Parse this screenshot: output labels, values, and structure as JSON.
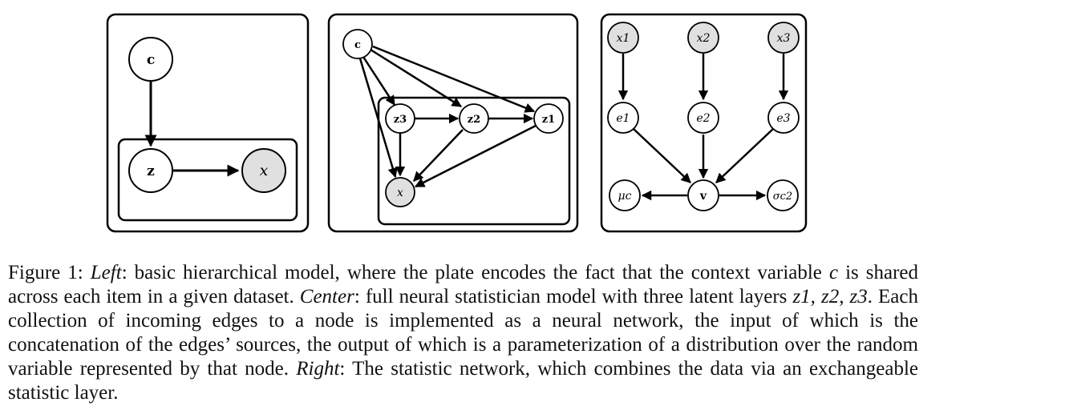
{
  "figure": {
    "left": {
      "nodes": {
        "c": "c",
        "z": "z",
        "x": "x"
      }
    },
    "center": {
      "nodes": {
        "c": "c",
        "z3": "z3",
        "z2": "z2",
        "z1": "z1",
        "x": "x"
      }
    },
    "right": {
      "nodes": {
        "x1": "x1",
        "x2": "x2",
        "x3": "x3",
        "e1": "e1",
        "e2": "e2",
        "e3": "e3",
        "mu": "μc",
        "v": "v",
        "sigma": "σc2"
      }
    }
  },
  "caption": {
    "prefix": "Figure 1: ",
    "left_label": "Left",
    "text1": ": basic hierarchical model, where the plate encodes the fact that the context variable ",
    "c_var": "c",
    "text2": " is shared across each item in a given dataset. ",
    "center_label": "Center",
    "text3": ": full neural statistician model with three latent layers ",
    "z_vars": "z1, z2, z3",
    "text4": ". Each collection of incoming edges to a node is implemented as a neural network, the input of which is the concatenation of the edges’ sources, the output of which is a parameterization of a distribution over the random variable represented by that node. ",
    "right_label": "Right",
    "text5": ": The statistic network, which combines the data via an exchangeable statistic layer."
  }
}
